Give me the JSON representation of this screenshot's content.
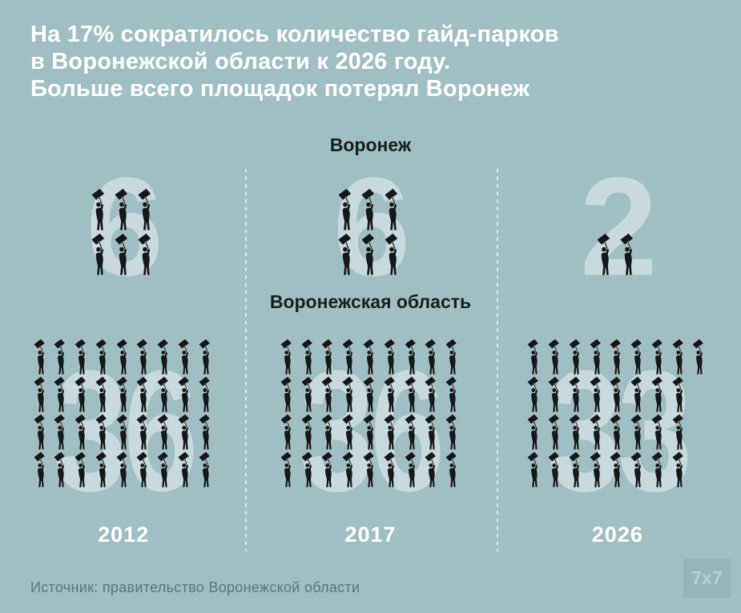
{
  "title": {
    "lines": [
      "На 17% сократилось количество гайд-парков",
      "в Воронежской области к 2026 году.",
      "Больше всего площадок потерял Воронеж"
    ]
  },
  "labels": {
    "city": "Воронеж",
    "region": "Воронежская область"
  },
  "columns": [
    {
      "year": "2012",
      "city": {
        "count": 6,
        "ghost": "6"
      },
      "region": {
        "count": 36,
        "ghost": "36"
      }
    },
    {
      "year": "2017",
      "city": {
        "count": 6,
        "ghost": "6"
      },
      "region": {
        "count": 36,
        "ghost": "36"
      }
    },
    {
      "year": "2026",
      "city": {
        "count": 2,
        "ghost": "2"
      },
      "region": {
        "count": 33,
        "ghost": "33"
      }
    }
  ],
  "footer": {
    "source": "Источник: правительство Воронежской области",
    "logo": "7x7"
  },
  "icons": {
    "figure": "protester-with-placard-icon"
  },
  "colors": {
    "background": "#a0bfc4",
    "title_text": "#ffffff",
    "section_label_text": "#1b1e1f",
    "ghost_number": "rgba(255,255,255,0.42)",
    "figure_silhouette": "#14181a",
    "year_text": "#ffffff",
    "source_text": "#5d7579",
    "dashed_separator": "rgba(255,255,255,0.62)",
    "logo_background": "#96b5ba",
    "logo_text": "#b7ced2"
  },
  "chart_data": {
    "type": "bar",
    "variant": "pictogram",
    "unit_glyph": "protester-with-placard-icon",
    "categories": [
      "2012",
      "2017",
      "2026"
    ],
    "series": [
      {
        "name": "Воронеж",
        "values": [
          6,
          6,
          2
        ]
      },
      {
        "name": "Воронежская область",
        "values": [
          36,
          36,
          33
        ]
      }
    ],
    "title": "На 17% сократилось количество гайд-парков в Воронежской области к 2026 году. Больше всего площадок потерял Воронеж",
    "source": "Источник: правительство Воронежской области",
    "legend_position": "section-headers-above-each-band",
    "grid": false,
    "axes": "none"
  }
}
